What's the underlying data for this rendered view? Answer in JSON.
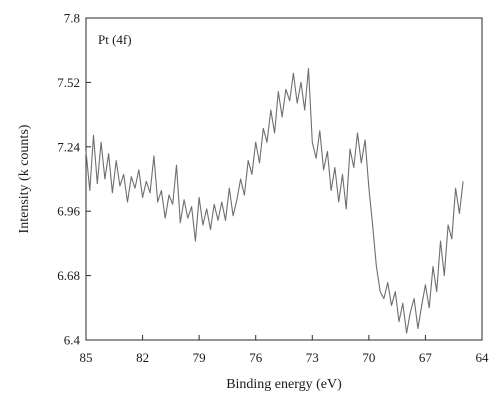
{
  "chart_data": {
    "type": "line",
    "annotation": "Pt (4f)",
    "xlabel": "Binding energy (eV)",
    "ylabel": "Intensity (k counts)",
    "xlim": [
      85,
      64
    ],
    "ylim": [
      6.4,
      7.8
    ],
    "x_reversed": true,
    "xticks": [
      85,
      82,
      79,
      76,
      73,
      70,
      67,
      64
    ],
    "yticks": [
      6.4,
      6.68,
      6.96,
      7.24,
      7.52,
      7.8
    ],
    "ytick_labels": [
      "6.4",
      "6.68",
      "6.96",
      "7.24",
      "7.52",
      "7.8"
    ],
    "grid": false,
    "line_color": "#6e6e6e",
    "series": [
      {
        "x": [
          85.0,
          84.8,
          84.6,
          84.4,
          84.2,
          84.0,
          83.8,
          83.6,
          83.4,
          83.2,
          83.0,
          82.8,
          82.6,
          82.4,
          82.2,
          82.0,
          81.8,
          81.6,
          81.4,
          81.2,
          81.0,
          80.8,
          80.6,
          80.4,
          80.2,
          80.0,
          79.8,
          79.6,
          79.4,
          79.2,
          79.0,
          78.8,
          78.6,
          78.4,
          78.2,
          78.0,
          77.8,
          77.6,
          77.4,
          77.2,
          77.0,
          76.8,
          76.6,
          76.4,
          76.2,
          76.0,
          75.8,
          75.6,
          75.4,
          75.2,
          75.0,
          74.8,
          74.6,
          74.4,
          74.2,
          74.0,
          73.8,
          73.6,
          73.4,
          73.2,
          73.0,
          72.8,
          72.6,
          72.4,
          72.2,
          72.0,
          71.8,
          71.6,
          71.4,
          71.2,
          71.0,
          70.8,
          70.6,
          70.4,
          70.2,
          70.0,
          69.8,
          69.6,
          69.4,
          69.2,
          69.0,
          68.8,
          68.6,
          68.4,
          68.2,
          68.0,
          67.8,
          67.6,
          67.4,
          67.2,
          67.0,
          66.8,
          66.6,
          66.4,
          66.2,
          66.0,
          65.8,
          65.6,
          65.4,
          65.2,
          65.0
        ],
        "y": [
          7.22,
          7.05,
          7.29,
          7.08,
          7.26,
          7.1,
          7.21,
          7.04,
          7.18,
          7.07,
          7.12,
          7.0,
          7.11,
          7.06,
          7.14,
          7.02,
          7.09,
          7.04,
          7.2,
          7.0,
          7.05,
          6.93,
          7.03,
          6.99,
          7.16,
          6.91,
          7.01,
          6.93,
          6.98,
          6.83,
          7.02,
          6.9,
          6.97,
          6.88,
          6.99,
          6.92,
          7.0,
          6.92,
          7.06,
          6.94,
          7.01,
          7.1,
          7.03,
          7.18,
          7.12,
          7.26,
          7.17,
          7.32,
          7.26,
          7.4,
          7.3,
          7.48,
          7.37,
          7.49,
          7.44,
          7.56,
          7.43,
          7.52,
          7.4,
          7.58,
          7.26,
          7.19,
          7.31,
          7.14,
          7.22,
          7.05,
          7.15,
          7.0,
          7.12,
          6.97,
          7.23,
          7.15,
          7.3,
          7.17,
          7.27,
          7.06,
          6.9,
          6.72,
          6.61,
          6.58,
          6.65,
          6.55,
          6.61,
          6.48,
          6.56,
          6.43,
          6.52,
          6.58,
          6.45,
          6.55,
          6.64,
          6.54,
          6.72,
          6.61,
          6.83,
          6.68,
          6.9,
          6.84,
          7.06,
          6.95,
          7.09
        ]
      }
    ]
  }
}
